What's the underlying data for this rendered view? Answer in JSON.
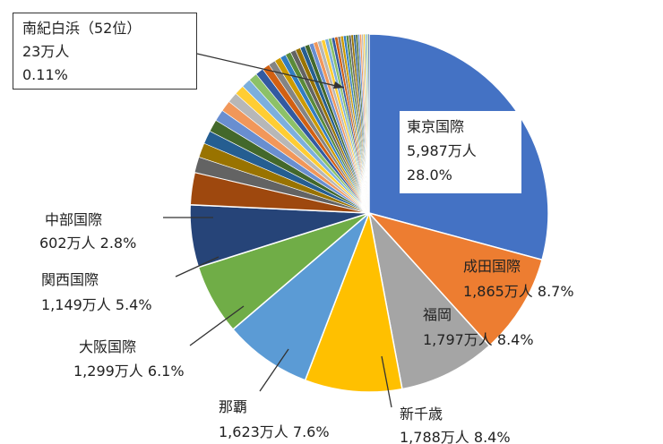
{
  "chart_data": {
    "type": "pie",
    "unit": "万人",
    "start_angle_deg": 0,
    "named_slices": [
      {
        "name": "東京国際",
        "value": 5987,
        "value_text": "5,987万人",
        "percent": 28.0,
        "percent_text": "28.0%",
        "color": "#4472C4"
      },
      {
        "name": "成田国際",
        "value": 1865,
        "value_text": "1,865万人",
        "percent": 8.7,
        "percent_text": "8.7%",
        "color": "#ED7D31"
      },
      {
        "name": "福岡",
        "value": 1797,
        "value_text": "1,797万人",
        "percent": 8.4,
        "percent_text": "8.4%",
        "color": "#A5A5A5"
      },
      {
        "name": "新千歳",
        "value": 1788,
        "value_text": "1,788万人",
        "percent": 8.4,
        "percent_text": "8.4%",
        "color": "#FFC000"
      },
      {
        "name": "那覇",
        "value": 1623,
        "value_text": "1,623万人",
        "percent": 7.6,
        "percent_text": "7.6%",
        "color": "#5B9BD5"
      },
      {
        "name": "大阪国際",
        "value": 1299,
        "value_text": "1,299万人",
        "percent": 6.1,
        "percent_text": "6.1%",
        "color": "#70AD47"
      },
      {
        "name": "関西国際",
        "value": 1149,
        "value_text": "1,149万人",
        "percent": 5.4,
        "percent_text": "5.4%",
        "color": "#264478"
      },
      {
        "name": "中部国際",
        "value": 602,
        "value_text": "602万人",
        "percent": 2.8,
        "percent_text": "2.8%",
        "color": "#9E480E"
      }
    ],
    "other_slices_percent": [
      1.35,
      1.25,
      1.15,
      1.05,
      1.0,
      0.95,
      0.9,
      0.85,
      0.8,
      0.75,
      0.7,
      0.65,
      0.6,
      0.55,
      0.5,
      0.48,
      0.46,
      0.44,
      0.42,
      0.4,
      0.38,
      0.36,
      0.34,
      0.32,
      0.3,
      0.28,
      0.27,
      0.26,
      0.25,
      0.24,
      0.23,
      0.22,
      0.21,
      0.2,
      0.19,
      0.18,
      0.17,
      0.16,
      0.15,
      0.14,
      0.13,
      0.12,
      0.11
    ],
    "other_palette": [
      "#636363",
      "#997300",
      "#255E91",
      "#43682B",
      "#698ED0",
      "#F1975A",
      "#B7B7B7",
      "#FFCD33",
      "#7CAFDD",
      "#8CC168",
      "#335AA1",
      "#D26012",
      "#848484",
      "#CC9A00",
      "#327DC2",
      "#5A8A39"
    ],
    "callout": {
      "name": "南紀白浜（52位）",
      "value_text": "23万人",
      "percent_text": "0.11%"
    }
  }
}
